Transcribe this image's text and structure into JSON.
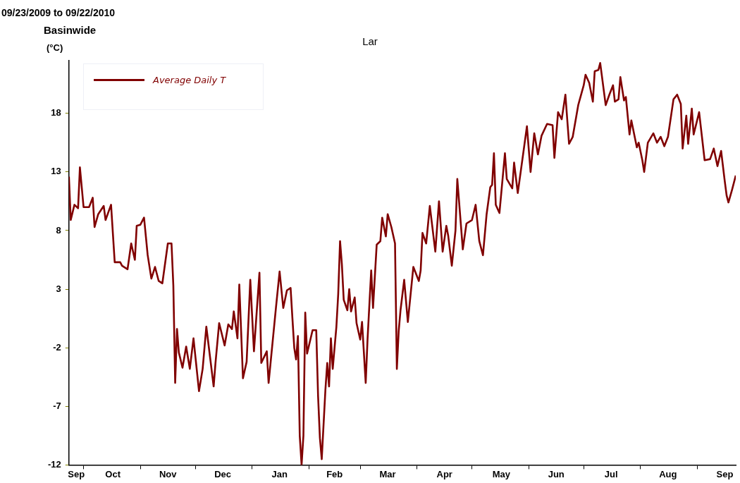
{
  "chart_data": {
    "type": "line",
    "title": "Lar",
    "subtitle": "09/23/2009 to 09/22/2010",
    "annotations": [
      "Basinwide"
    ],
    "ylabel": "(°C)",
    "legend": "top left",
    "marker": "none",
    "line_style": "solid",
    "xlim": [
      "2009-09-23",
      "2010-09-22"
    ],
    "ylim": [
      -12,
      22.5
    ],
    "yticks": [
      -12,
      -7,
      -2,
      3,
      8,
      13,
      18
    ],
    "xticks": [
      {
        "value": "2009-09-27",
        "label": "Sep"
      },
      {
        "value": "2009-10-01",
        "label": null
      },
      {
        "value": "2009-10-17",
        "label": "Oct"
      },
      {
        "value": "2009-11-01",
        "label": null
      },
      {
        "value": "2009-11-16",
        "label": "Nov"
      },
      {
        "value": "2009-12-01",
        "label": null
      },
      {
        "value": "2009-12-16",
        "label": "Dec"
      },
      {
        "value": "2010-01-01",
        "label": null
      },
      {
        "value": "2010-01-16",
        "label": "Jan"
      },
      {
        "value": "2010-02-01",
        "label": null
      },
      {
        "value": "2010-02-15",
        "label": "Feb"
      },
      {
        "value": "2010-03-01",
        "label": null
      },
      {
        "value": "2010-03-16",
        "label": "Mar"
      },
      {
        "value": "2010-04-01",
        "label": null
      },
      {
        "value": "2010-04-16",
        "label": "Apr"
      },
      {
        "value": "2010-05-01",
        "label": null
      },
      {
        "value": "2010-05-17",
        "label": "May"
      },
      {
        "value": "2010-06-01",
        "label": null
      },
      {
        "value": "2010-06-16",
        "label": "Jun"
      },
      {
        "value": "2010-07-01",
        "label": null
      },
      {
        "value": "2010-07-16",
        "label": "Jul"
      },
      {
        "value": "2010-08-01",
        "label": null
      },
      {
        "value": "2010-08-16",
        "label": "Aug"
      },
      {
        "value": "2010-09-01",
        "label": null
      },
      {
        "value": "2010-09-16",
        "label": "Sep"
      }
    ],
    "series": [
      {
        "name": "Average Daily T",
        "color": "#800000",
        "x": [
          "2009-09-23",
          "2009-09-24",
          "2009-09-26",
          "2009-09-28",
          "2009-09-29",
          "2009-10-01",
          "2009-10-04",
          "2009-10-06",
          "2009-10-07",
          "2009-10-09",
          "2009-10-12",
          "2009-10-13",
          "2009-10-16",
          "2009-10-18",
          "2009-10-21",
          "2009-10-22",
          "2009-10-25",
          "2009-10-27",
          "2009-10-29",
          "2009-10-30",
          "2009-11-01",
          "2009-11-03",
          "2009-11-05",
          "2009-11-07",
          "2009-11-09",
          "2009-11-11",
          "2009-11-13",
          "2009-11-16",
          "2009-11-18",
          "2009-11-19",
          "2009-11-20",
          "2009-11-21",
          "2009-11-22",
          "2009-11-24",
          "2009-11-26",
          "2009-11-28",
          "2009-11-30",
          "2009-12-03",
          "2009-12-05",
          "2009-12-07",
          "2009-12-11",
          "2009-12-12",
          "2009-12-14",
          "2009-12-17",
          "2009-12-19",
          "2009-12-21",
          "2009-12-22",
          "2009-12-24",
          "2009-12-25",
          "2009-12-27",
          "2009-12-29",
          "2009-12-31",
          "2010-01-02",
          "2010-01-05",
          "2010-01-06",
          "2010-01-09",
          "2010-01-10",
          "2010-01-14",
          "2010-01-16",
          "2010-01-18",
          "2010-01-20",
          "2010-01-22",
          "2010-01-23",
          "2010-01-24",
          "2010-01-25",
          "2010-01-26",
          "2010-01-27",
          "2010-01-28",
          "2010-01-29",
          "2010-01-30",
          "2010-01-31",
          "2010-02-03",
          "2010-02-05",
          "2010-02-06",
          "2010-02-07",
          "2010-02-08",
          "2010-02-10",
          "2010-02-11",
          "2010-02-12",
          "2010-02-13",
          "2010-02-14",
          "2010-02-16",
          "2010-02-17",
          "2010-02-18",
          "2010-02-19",
          "2010-02-20",
          "2010-02-22",
          "2010-02-23",
          "2010-02-24",
          "2010-02-26",
          "2010-02-27",
          "2010-03-01",
          "2010-03-02",
          "2010-03-04",
          "2010-03-05",
          "2010-03-07",
          "2010-03-08",
          "2010-03-10",
          "2010-03-12",
          "2010-03-13",
          "2010-03-15",
          "2010-03-16",
          "2010-03-18",
          "2010-03-20",
          "2010-03-21",
          "2010-03-22",
          "2010-03-23",
          "2010-03-25",
          "2010-03-27",
          "2010-03-30",
          "2010-04-02",
          "2010-04-03",
          "2010-04-04",
          "2010-04-06",
          "2010-04-08",
          "2010-04-11",
          "2010-04-13",
          "2010-04-15",
          "2010-04-17",
          "2010-04-18",
          "2010-04-20",
          "2010-04-22",
          "2010-04-23",
          "2010-04-26",
          "2010-04-28",
          "2010-05-01",
          "2010-05-03",
          "2010-05-05",
          "2010-05-07",
          "2010-05-09",
          "2010-05-11",
          "2010-05-12",
          "2010-05-13",
          "2010-05-14",
          "2010-05-16",
          "2010-05-19",
          "2010-05-20",
          "2010-05-23",
          "2010-05-24",
          "2010-05-26",
          "2010-05-29",
          "2010-05-31",
          "2010-06-02",
          "2010-06-04",
          "2010-06-06",
          "2010-06-08",
          "2010-06-11",
          "2010-06-14",
          "2010-06-15",
          "2010-06-17",
          "2010-06-19",
          "2010-06-21",
          "2010-06-23",
          "2010-06-25",
          "2010-06-28",
          "2010-07-01",
          "2010-07-02",
          "2010-07-04",
          "2010-07-06",
          "2010-07-07",
          "2010-07-09",
          "2010-07-10",
          "2010-07-13",
          "2010-07-15",
          "2010-07-17",
          "2010-07-18",
          "2010-07-20",
          "2010-07-21",
          "2010-07-23",
          "2010-07-24",
          "2010-07-26",
          "2010-07-27",
          "2010-07-30",
          "2010-07-31",
          "2010-08-02",
          "2010-08-03",
          "2010-08-05",
          "2010-08-08",
          "2010-08-10",
          "2010-08-12",
          "2010-08-14",
          "2010-08-16",
          "2010-08-19",
          "2010-08-21",
          "2010-08-23",
          "2010-08-24",
          "2010-08-26",
          "2010-08-27",
          "2010-08-29",
          "2010-08-30",
          "2010-09-02",
          "2010-09-05",
          "2010-09-08",
          "2010-09-10",
          "2010-09-12",
          "2010-09-14",
          "2010-09-16",
          "2010-09-17",
          "2010-09-18",
          "2010-09-20",
          "2010-09-22"
        ],
        "values": [
          12.6,
          8.9,
          10.2,
          9.9,
          13.4,
          10.0,
          10.0,
          10.8,
          8.3,
          9.4,
          10.1,
          8.9,
          10.2,
          5.3,
          5.3,
          5.0,
          4.7,
          6.9,
          5.5,
          8.4,
          8.5,
          9.1,
          5.9,
          3.9,
          4.9,
          3.7,
          3.5,
          6.9,
          6.9,
          3.3,
          -5.0,
          -0.4,
          -2.4,
          -3.7,
          -1.9,
          -3.8,
          -1.2,
          -5.7,
          -3.8,
          -0.2,
          -5.3,
          -3.3,
          0.1,
          -1.8,
          0.0,
          -0.4,
          1.1,
          -1.2,
          3.4,
          -4.6,
          -3.2,
          3.8,
          -2.3,
          4.4,
          -3.3,
          -2.3,
          -5.0,
          1.4,
          4.5,
          1.4,
          2.9,
          3.1,
          0.5,
          -2.0,
          -3.0,
          -1.0,
          -9.5,
          -12.0,
          -9.5,
          1.0,
          -2.5,
          -0.5,
          -0.5,
          -6.1,
          -9.7,
          -11.5,
          -5.6,
          -3.3,
          -5.3,
          -1.2,
          -3.8,
          -0.2,
          2.6,
          7.1,
          5.1,
          2.1,
          1.2,
          3.0,
          1.1,
          2.3,
          0.1,
          -1.3,
          0.2,
          -5.0,
          -1.3,
          4.6,
          1.4,
          6.8,
          7.1,
          9.1,
          7.5,
          9.4,
          8.3,
          6.9,
          -3.8,
          -0.6,
          1.2,
          3.8,
          0.2,
          4.9,
          3.7,
          4.6,
          7.8,
          6.9,
          10.1,
          6.2,
          10.5,
          6.2,
          8.4,
          7.6,
          5.0,
          8.0,
          12.4,
          6.4,
          8.6,
          8.9,
          10.2,
          7.1,
          5.9,
          9.4,
          11.7,
          11.9,
          14.6,
          10.2,
          9.5,
          14.6,
          12.4,
          11.6,
          13.8,
          11.2,
          14.6,
          16.9,
          13.0,
          16.3,
          14.5,
          16.1,
          17.1,
          17.0,
          14.2,
          18.1,
          17.5,
          19.6,
          15.4,
          16.0,
          18.7,
          20.4,
          21.3,
          20.6,
          19.0,
          21.6,
          21.7,
          22.3,
          18.7,
          19.6,
          20.4,
          19.0,
          19.2,
          21.1,
          19.1,
          19.4,
          16.2,
          17.4,
          15.1,
          15.5,
          14.0,
          13.0,
          15.5,
          16.3,
          15.5,
          16.0,
          15.2,
          16.0,
          19.2,
          19.6,
          18.8,
          15.0,
          17.8,
          15.4,
          18.4,
          16.2,
          18.1,
          14.0,
          14.1,
          15.0,
          13.5,
          14.8,
          12.2,
          11.0,
          10.4,
          11.5,
          12.7
        ]
      }
    ]
  }
}
